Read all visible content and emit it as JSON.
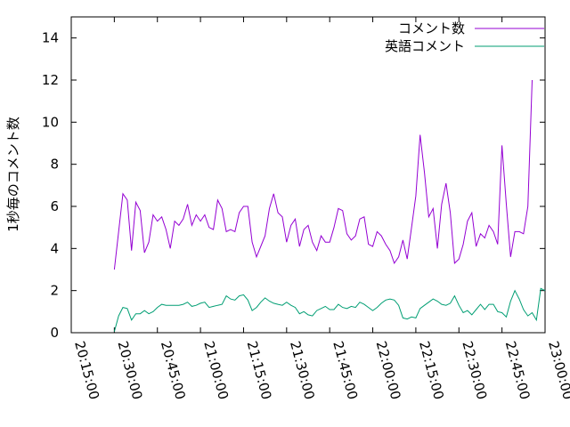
{
  "chart_data": {
    "type": "line",
    "title": "",
    "xlabel": "",
    "ylabel": "1秒毎のコメント数",
    "xlim": [
      "20:15:00",
      "23:00:00"
    ],
    "ylim": [
      0,
      15
    ],
    "yticks": [
      "0",
      "2",
      "4",
      "6",
      "8",
      "10",
      "12",
      "14"
    ],
    "xticks": [
      "20:15:00",
      "20:30:00",
      "20:45:00",
      "21:00:00",
      "21:15:00",
      "21:30:00",
      "21:45:00",
      "22:00:00",
      "22:15:00",
      "22:30:00",
      "22:45:00",
      "23:00:00"
    ],
    "grid": false,
    "legend_position": "top-right",
    "series": [
      {
        "name": "コメント数",
        "color": "#9400d3",
        "points": [
          [
            "20:30:00",
            3.0
          ],
          [
            "20:31:30",
            4.8
          ],
          [
            "20:33:00",
            6.6
          ],
          [
            "20:34:30",
            6.3
          ],
          [
            "20:36:00",
            3.9
          ],
          [
            "20:37:30",
            6.2
          ],
          [
            "20:39:00",
            5.8
          ],
          [
            "20:40:30",
            3.8
          ],
          [
            "20:42:00",
            4.3
          ],
          [
            "20:43:30",
            5.6
          ],
          [
            "20:45:00",
            5.3
          ],
          [
            "20:46:30",
            5.5
          ],
          [
            "20:48:00",
            4.9
          ],
          [
            "20:49:30",
            4.0
          ],
          [
            "20:51:00",
            5.3
          ],
          [
            "20:52:30",
            5.1
          ],
          [
            "20:54:00",
            5.4
          ],
          [
            "20:55:30",
            6.1
          ],
          [
            "20:57:00",
            5.1
          ],
          [
            "20:58:30",
            5.6
          ],
          [
            "21:00:00",
            5.3
          ],
          [
            "21:01:30",
            5.6
          ],
          [
            "21:03:00",
            5.0
          ],
          [
            "21:04:30",
            4.9
          ],
          [
            "21:06:00",
            6.3
          ],
          [
            "21:07:30",
            5.9
          ],
          [
            "21:09:00",
            4.8
          ],
          [
            "21:10:30",
            4.9
          ],
          [
            "21:12:00",
            4.8
          ],
          [
            "21:13:30",
            5.7
          ],
          [
            "21:15:00",
            6.0
          ],
          [
            "21:16:30",
            6.0
          ],
          [
            "21:18:00",
            4.3
          ],
          [
            "21:19:30",
            3.6
          ],
          [
            "21:21:00",
            4.1
          ],
          [
            "21:22:30",
            4.6
          ],
          [
            "21:24:00",
            5.9
          ],
          [
            "21:25:30",
            6.6
          ],
          [
            "21:27:00",
            5.7
          ],
          [
            "21:28:30",
            5.5
          ],
          [
            "21:30:00",
            4.3
          ],
          [
            "21:31:30",
            5.1
          ],
          [
            "21:33:00",
            5.4
          ],
          [
            "21:34:30",
            4.1
          ],
          [
            "21:36:00",
            4.9
          ],
          [
            "21:37:30",
            5.1
          ],
          [
            "21:39:00",
            4.3
          ],
          [
            "21:40:30",
            3.9
          ],
          [
            "21:42:00",
            4.6
          ],
          [
            "21:43:30",
            4.3
          ],
          [
            "21:45:00",
            4.3
          ],
          [
            "21:46:30",
            5.0
          ],
          [
            "21:48:00",
            5.9
          ],
          [
            "21:49:30",
            5.8
          ],
          [
            "21:51:00",
            4.7
          ],
          [
            "21:52:30",
            4.4
          ],
          [
            "21:54:00",
            4.6
          ],
          [
            "21:55:30",
            5.4
          ],
          [
            "21:57:00",
            5.5
          ],
          [
            "21:58:30",
            4.2
          ],
          [
            "22:00:00",
            4.1
          ],
          [
            "22:01:30",
            4.8
          ],
          [
            "22:03:00",
            4.6
          ],
          [
            "22:04:30",
            4.2
          ],
          [
            "22:06:00",
            3.9
          ],
          [
            "22:07:30",
            3.3
          ],
          [
            "22:09:00",
            3.6
          ],
          [
            "22:10:30",
            4.4
          ],
          [
            "22:12:00",
            3.5
          ],
          [
            "22:13:30",
            5.0
          ],
          [
            "22:15:00",
            6.5
          ],
          [
            "22:16:30",
            9.4
          ],
          [
            "22:18:00",
            7.6
          ],
          [
            "22:19:30",
            5.5
          ],
          [
            "22:21:00",
            5.9
          ],
          [
            "22:22:30",
            4.0
          ],
          [
            "22:24:00",
            6.1
          ],
          [
            "22:25:30",
            7.1
          ],
          [
            "22:27:00",
            5.7
          ],
          [
            "22:28:30",
            3.3
          ],
          [
            "22:30:00",
            3.5
          ],
          [
            "22:31:30",
            4.2
          ],
          [
            "22:33:00",
            5.3
          ],
          [
            "22:34:30",
            5.7
          ],
          [
            "22:36:00",
            4.1
          ],
          [
            "22:37:30",
            4.7
          ],
          [
            "22:39:00",
            4.5
          ],
          [
            "22:40:30",
            5.1
          ],
          [
            "22:42:00",
            4.8
          ],
          [
            "22:43:30",
            4.2
          ],
          [
            "22:45:00",
            8.9
          ],
          [
            "22:46:30",
            6.1
          ],
          [
            "22:48:00",
            3.6
          ],
          [
            "22:49:30",
            4.8
          ],
          [
            "22:51:00",
            4.8
          ],
          [
            "22:52:30",
            4.7
          ],
          [
            "22:54:00",
            6.0
          ],
          [
            "22:55:30",
            12.0
          ]
        ]
      },
      {
        "name": "英語コメント",
        "color": "#009e73",
        "points": [
          [
            "20:30:00",
            0.05
          ],
          [
            "20:31:30",
            0.8
          ],
          [
            "20:33:00",
            1.2
          ],
          [
            "20:34:30",
            1.15
          ],
          [
            "20:36:00",
            0.6
          ],
          [
            "20:37:30",
            0.9
          ],
          [
            "20:39:00",
            0.9
          ],
          [
            "20:40:30",
            1.05
          ],
          [
            "20:42:00",
            0.9
          ],
          [
            "20:43:30",
            1.0
          ],
          [
            "20:45:00",
            1.2
          ],
          [
            "20:46:30",
            1.35
          ],
          [
            "20:48:00",
            1.3
          ],
          [
            "20:49:30",
            1.3
          ],
          [
            "20:51:00",
            1.3
          ],
          [
            "20:52:30",
            1.3
          ],
          [
            "20:54:00",
            1.35
          ],
          [
            "20:55:30",
            1.45
          ],
          [
            "20:57:00",
            1.25
          ],
          [
            "20:58:30",
            1.3
          ],
          [
            "21:00:00",
            1.4
          ],
          [
            "21:01:30",
            1.45
          ],
          [
            "21:03:00",
            1.2
          ],
          [
            "21:04:30",
            1.25
          ],
          [
            "21:06:00",
            1.3
          ],
          [
            "21:07:30",
            1.35
          ],
          [
            "21:09:00",
            1.75
          ],
          [
            "21:10:30",
            1.6
          ],
          [
            "21:12:00",
            1.55
          ],
          [
            "21:13:30",
            1.75
          ],
          [
            "21:15:00",
            1.8
          ],
          [
            "21:16:30",
            1.55
          ],
          [
            "21:18:00",
            1.05
          ],
          [
            "21:19:30",
            1.2
          ],
          [
            "21:21:00",
            1.45
          ],
          [
            "21:22:30",
            1.65
          ],
          [
            "21:24:00",
            1.5
          ],
          [
            "21:25:30",
            1.4
          ],
          [
            "21:27:00",
            1.35
          ],
          [
            "21:28:30",
            1.3
          ],
          [
            "21:30:00",
            1.45
          ],
          [
            "21:31:30",
            1.3
          ],
          [
            "21:33:00",
            1.2
          ],
          [
            "21:34:30",
            0.9
          ],
          [
            "21:36:00",
            1.0
          ],
          [
            "21:37:30",
            0.85
          ],
          [
            "21:39:00",
            0.8
          ],
          [
            "21:40:30",
            1.05
          ],
          [
            "21:42:00",
            1.15
          ],
          [
            "21:43:30",
            1.25
          ],
          [
            "21:45:00",
            1.1
          ],
          [
            "21:46:30",
            1.1
          ],
          [
            "21:48:00",
            1.35
          ],
          [
            "21:49:30",
            1.2
          ],
          [
            "21:51:00",
            1.15
          ],
          [
            "21:52:30",
            1.25
          ],
          [
            "21:54:00",
            1.2
          ],
          [
            "21:55:30",
            1.45
          ],
          [
            "21:57:00",
            1.35
          ],
          [
            "21:58:30",
            1.2
          ],
          [
            "22:00:00",
            1.05
          ],
          [
            "22:01:30",
            1.2
          ],
          [
            "22:03:00",
            1.4
          ],
          [
            "22:04:30",
            1.55
          ],
          [
            "22:06:00",
            1.6
          ],
          [
            "22:07:30",
            1.55
          ],
          [
            "22:09:00",
            1.3
          ],
          [
            "22:10:30",
            0.7
          ],
          [
            "22:12:00",
            0.65
          ],
          [
            "22:13:30",
            0.75
          ],
          [
            "22:15:00",
            0.7
          ],
          [
            "22:16:30",
            1.15
          ],
          [
            "22:18:00",
            1.3
          ],
          [
            "22:19:30",
            1.45
          ],
          [
            "22:21:00",
            1.6
          ],
          [
            "22:22:30",
            1.5
          ],
          [
            "22:24:00",
            1.35
          ],
          [
            "22:25:30",
            1.3
          ],
          [
            "22:27:00",
            1.4
          ],
          [
            "22:28:30",
            1.75
          ],
          [
            "22:30:00",
            1.3
          ],
          [
            "22:31:30",
            0.95
          ],
          [
            "22:33:00",
            1.05
          ],
          [
            "22:34:30",
            0.85
          ],
          [
            "22:36:00",
            1.1
          ],
          [
            "22:37:30",
            1.35
          ],
          [
            "22:39:00",
            1.1
          ],
          [
            "22:40:30",
            1.35
          ],
          [
            "22:42:00",
            1.35
          ],
          [
            "22:43:30",
            1.0
          ],
          [
            "22:45:00",
            0.95
          ],
          [
            "22:46:30",
            0.75
          ],
          [
            "22:48:00",
            1.5
          ],
          [
            "22:49:30",
            2.0
          ],
          [
            "22:51:00",
            1.6
          ],
          [
            "22:52:30",
            1.1
          ],
          [
            "22:54:00",
            0.8
          ],
          [
            "22:55:30",
            0.95
          ],
          [
            "22:57:00",
            0.6
          ],
          [
            "22:58:30",
            2.1
          ],
          [
            "23:00:00",
            2.0
          ]
        ]
      }
    ]
  }
}
